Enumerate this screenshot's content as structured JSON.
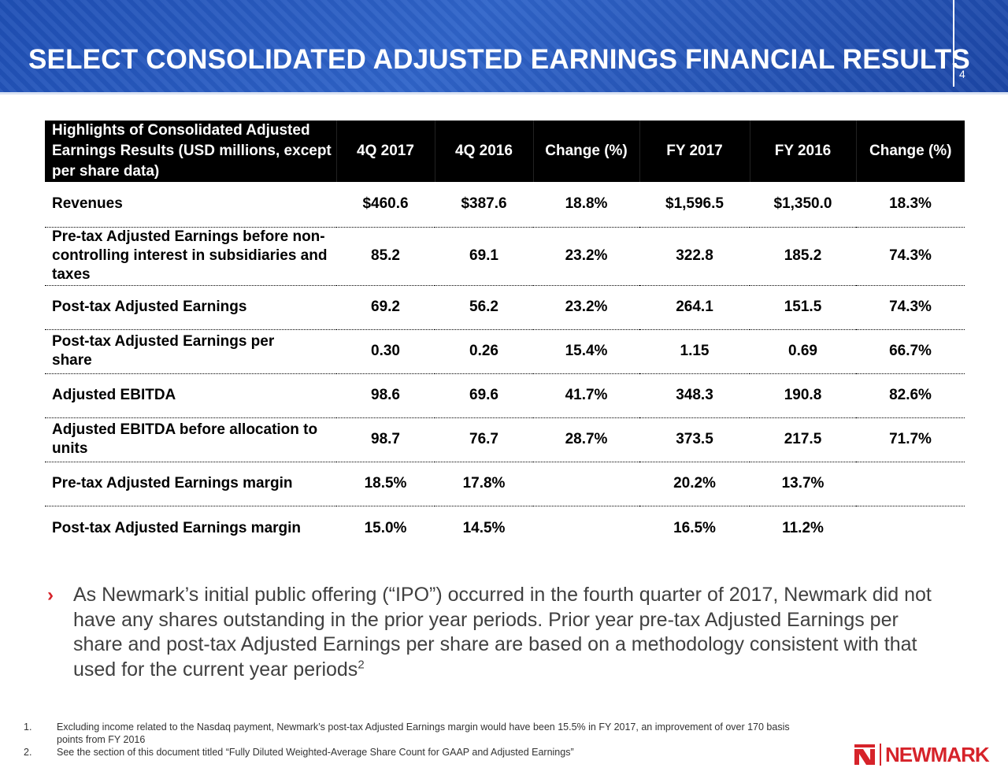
{
  "header": {
    "title": "SELECT CONSOLIDATED ADJUSTED EARNINGS FINANCIAL RESULTS",
    "page_number": "4"
  },
  "table": {
    "columns": [
      "Highlights of Consolidated Adjusted Earnings Results  (USD millions, except per share data)",
      "4Q 2017",
      "4Q 2016",
      "Change (%)",
      "FY 2017",
      "FY 2016",
      "Change (%)"
    ],
    "rows": [
      {
        "label": "Revenues",
        "values": [
          "$460.6",
          "$387.6",
          "18.8%",
          "$1,596.5",
          "$1,350.0",
          "18.3%"
        ]
      },
      {
        "label": "Pre-tax Adjusted Earnings before non-controlling interest in subsidiaries and taxes",
        "values": [
          "85.2",
          "69.1",
          "23.2%",
          "322.8",
          "185.2",
          "74.3%"
        ]
      },
      {
        "label": "Post-tax Adjusted Earnings",
        "values": [
          "69.2",
          "56.2",
          "23.2%",
          "264.1",
          "151.5",
          "74.3%"
        ]
      },
      {
        "label": "Post-tax Adjusted Earnings per share",
        "values": [
          "0.30",
          "0.26",
          "15.4%",
          "1.15",
          "0.69",
          "66.7%"
        ]
      },
      {
        "label": "Adjusted EBITDA",
        "values": [
          "98.6",
          "69.6",
          "41.7%",
          "348.3",
          "190.8",
          "82.6%"
        ]
      },
      {
        "label": "Adjusted EBITDA before allocation to units",
        "values": [
          "98.7",
          "76.7",
          "28.7%",
          "373.5",
          "217.5",
          "71.7%"
        ]
      },
      {
        "label": "Pre-tax Adjusted Earnings margin",
        "values": [
          "18.5%",
          "17.8%",
          "",
          "20.2%",
          "13.7%",
          ""
        ]
      },
      {
        "label": "Post-tax Adjusted Earnings margin",
        "values": [
          "15.0%",
          "14.5%",
          "",
          "16.5%",
          "11.2%",
          ""
        ]
      }
    ]
  },
  "bullet": {
    "marker": "›",
    "text": "As Newmark’s initial public offering (“IPO”) occurred in the fourth quarter of 2017, Newmark did not have any shares outstanding in the prior year periods. Prior year pre-tax Adjusted Earnings per share and post-tax Adjusted Earnings per share are based on a methodology consistent with that used for the current year periods",
    "superscript": "2"
  },
  "footnotes": [
    {
      "num": "1.",
      "text": "Excluding income related to the Nasdaq payment, Newmark’s post-tax Adjusted Earnings margin would have been 15.5% in FY 2017, an improvement of over 170 basis points from FY 2016"
    },
    {
      "num": "2.",
      "text": "See the section of this document titled “Fully Diluted Weighted-Average Share Count for GAAP and Adjusted Earnings”"
    }
  ],
  "logo": {
    "text": "NEWMARK",
    "icon": "newmark-n-icon",
    "color": "#d6232a"
  },
  "colors": {
    "header_blue": "#2a5bc0",
    "accent_red": "#d6232a",
    "table_header": "#000000"
  }
}
